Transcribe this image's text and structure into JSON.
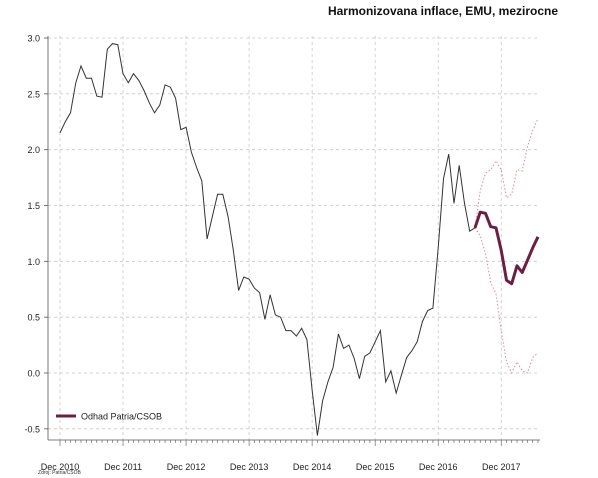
{
  "chart_data": {
    "type": "line",
    "title": "Harmonizovana inflace, EMU, mezirocne",
    "xlabel": "",
    "ylabel": "",
    "ylim": [
      -0.6,
      3.0
    ],
    "y_ticks": [
      "-0.5",
      "0.0",
      "0.5",
      "1.0",
      "1.5",
      "2.0",
      "2.5",
      "3.0"
    ],
    "x_ticks": [
      "Dec 2010",
      "Dec 2011",
      "Dec 2012",
      "Dec 2013",
      "Dec 2014",
      "Dec 2015",
      "Dec 2016",
      "Dec 2017"
    ],
    "grid": true,
    "legend": {
      "placement": "bottom-left",
      "entries": [
        "Odhad Patria/CSOB"
      ]
    },
    "source_note": "Zdroj: Patria/CSOB",
    "colors": {
      "actual": "#333333",
      "forecast": "#6b1f45",
      "band": "#e08a9a",
      "grid": "#c8c8c8"
    },
    "series": [
      {
        "kind": "actual",
        "points": [
          [
            0,
            2.15
          ],
          [
            1,
            2.25
          ],
          [
            2,
            2.33
          ],
          [
            3,
            2.6
          ],
          [
            4,
            2.75
          ],
          [
            5,
            2.64
          ],
          [
            6,
            2.64
          ],
          [
            7,
            2.48
          ],
          [
            8,
            2.47
          ],
          [
            9,
            2.9
          ],
          [
            10,
            2.95
          ],
          [
            11,
            2.94
          ],
          [
            12,
            2.68
          ],
          [
            13,
            2.6
          ],
          [
            14,
            2.68
          ],
          [
            15,
            2.62
          ],
          [
            16,
            2.53
          ],
          [
            17,
            2.42
          ],
          [
            18,
            2.33
          ],
          [
            19,
            2.4
          ],
          [
            20,
            2.58
          ],
          [
            21,
            2.56
          ],
          [
            22,
            2.46
          ],
          [
            23,
            2.18
          ],
          [
            24,
            2.2
          ],
          [
            25,
            1.98
          ],
          [
            26,
            1.84
          ],
          [
            27,
            1.72
          ],
          [
            28,
            1.2
          ],
          [
            29,
            1.4
          ],
          [
            30,
            1.6
          ],
          [
            31,
            1.6
          ],
          [
            32,
            1.4
          ],
          [
            33,
            1.1
          ],
          [
            34,
            0.74
          ],
          [
            35,
            0.86
          ],
          [
            36,
            0.84
          ],
          [
            37,
            0.76
          ],
          [
            38,
            0.72
          ],
          [
            39,
            0.48
          ],
          [
            40,
            0.7
          ],
          [
            41,
            0.52
          ],
          [
            42,
            0.5
          ],
          [
            43,
            0.38
          ],
          [
            44,
            0.38
          ],
          [
            45,
            0.33
          ],
          [
            46,
            0.4
          ],
          [
            47,
            0.3
          ],
          [
            48,
            -0.15
          ],
          [
            49,
            -0.56
          ],
          [
            50,
            -0.25
          ],
          [
            51,
            -0.08
          ],
          [
            52,
            0.05
          ],
          [
            53,
            0.35
          ],
          [
            54,
            0.22
          ],
          [
            55,
            0.25
          ],
          [
            56,
            0.13
          ],
          [
            57,
            -0.05
          ],
          [
            58,
            0.15
          ],
          [
            59,
            0.18
          ],
          [
            60,
            0.28
          ],
          [
            61,
            0.38
          ],
          [
            62,
            -0.08
          ],
          [
            63,
            0.02
          ],
          [
            64,
            -0.18
          ],
          [
            65,
            -0.02
          ],
          [
            66,
            0.14
          ],
          [
            67,
            0.2
          ],
          [
            68,
            0.28
          ],
          [
            69,
            0.46
          ],
          [
            70,
            0.56
          ],
          [
            71,
            0.58
          ],
          [
            72,
            1.12
          ],
          [
            73,
            1.74
          ],
          [
            74,
            1.96
          ],
          [
            75,
            1.52
          ],
          [
            76,
            1.86
          ],
          [
            77,
            1.52
          ],
          [
            78,
            1.27
          ],
          [
            79,
            1.3
          ]
        ]
      },
      {
        "kind": "forecast",
        "name": "Odhad Patria/CSOB",
        "points": [
          [
            79,
            1.3
          ],
          [
            80,
            1.44
          ],
          [
            81,
            1.43
          ],
          [
            82,
            1.31
          ],
          [
            83,
            1.3
          ],
          [
            84,
            1.1
          ],
          [
            85,
            0.83
          ],
          [
            86,
            0.8
          ],
          [
            87,
            0.96
          ],
          [
            88,
            0.9
          ],
          [
            89,
            1.01
          ],
          [
            90,
            1.12
          ],
          [
            91,
            1.22
          ]
        ]
      },
      {
        "kind": "band-upper",
        "points": [
          [
            79,
            1.3
          ],
          [
            80,
            1.63
          ],
          [
            81,
            1.79
          ],
          [
            82,
            1.82
          ],
          [
            83,
            1.9
          ],
          [
            84,
            1.82
          ],
          [
            85,
            1.57
          ],
          [
            86,
            1.6
          ],
          [
            87,
            1.82
          ],
          [
            88,
            1.81
          ],
          [
            89,
            2.03
          ],
          [
            90,
            2.17
          ],
          [
            91,
            2.28
          ]
        ]
      },
      {
        "kind": "band-lower",
        "points": [
          [
            79,
            1.3
          ],
          [
            80,
            1.23
          ],
          [
            81,
            1.07
          ],
          [
            82,
            0.81
          ],
          [
            83,
            0.71
          ],
          [
            84,
            0.38
          ],
          [
            85,
            0.1
          ],
          [
            86,
            0.0
          ],
          [
            87,
            0.1
          ],
          [
            88,
            0.02
          ],
          [
            89,
            0.0
          ],
          [
            90,
            0.14
          ],
          [
            91,
            0.18
          ]
        ]
      }
    ]
  }
}
